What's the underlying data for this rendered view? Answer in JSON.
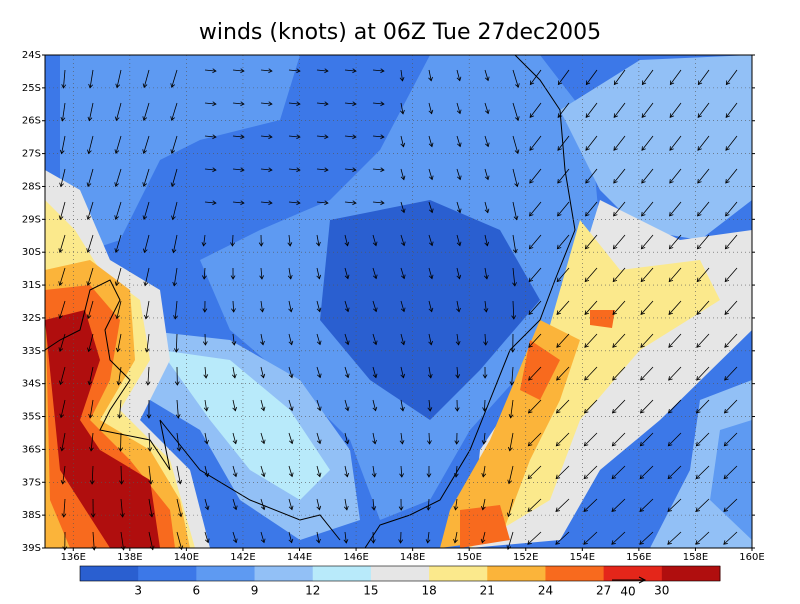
{
  "title": "winds (knots) at 06Z Tue 27dec2005",
  "lat_labels": [
    "24S",
    "25S",
    "26S",
    "27S",
    "28S",
    "29S",
    "30S",
    "31S",
    "32S",
    "33S",
    "34S",
    "35S",
    "36S",
    "37S",
    "38S",
    "39S"
  ],
  "lon_labels": [
    "136E",
    "138E",
    "140E",
    "142E",
    "144E",
    "146E",
    "148E",
    "150E",
    "152E",
    "154E",
    "156E",
    "158E",
    "160E"
  ],
  "colorbar": {
    "labels": [
      "3",
      "6",
      "9",
      "12",
      "15",
      "18",
      "21",
      "24",
      "27",
      "30"
    ],
    "colors": [
      "#2a5fd0",
      "#3c78e8",
      "#5e9af2",
      "#92c0f6",
      "#b8eafa",
      "#e6e6e6",
      "#fbe98c",
      "#fbb43a",
      "#f86a1e",
      "#e4261a",
      "#b00e0e"
    ]
  },
  "reference_vector": "40"
}
